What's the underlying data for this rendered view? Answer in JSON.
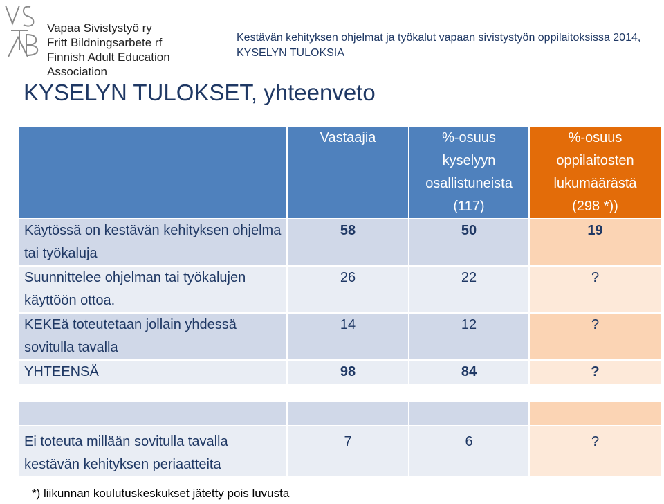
{
  "logo": {
    "mark": "VSTAB",
    "lines": [
      "Vapaa Sivistystyö ry",
      "Fritt Bildningsarbete rf",
      "Finnish Adult Education Association"
    ]
  },
  "header": {
    "subtitle_line1": "Kestävän kehityksen ohjelmat ja työkalut vapaan sivistystyön oppilaitoksissa 2014,",
    "subtitle_line2": "KYSELYN TULOKSIA"
  },
  "title": "KYSELYN TULOKSET, yhteenveto",
  "table": {
    "columns": [
      "",
      "Vastaajia",
      "%-osuus kyselyyn osallistuneista (117)",
      "%-osuus oppilaitosten lukumäärästä (298 *))"
    ],
    "column_lines": [
      [],
      [
        "Vastaajia"
      ],
      [
        "%-osuus",
        "kyselyyn",
        "osallistuneista",
        "(117)"
      ],
      [
        "%-osuus",
        "oppilaitosten",
        "lukumäärästä",
        "(298 *))"
      ]
    ],
    "rows": [
      {
        "label": "Käytössä on kestävän kehityksen ohjelma tai työkaluja",
        "vastaajia": "58",
        "pct_kysely": "50",
        "pct_oppilaitos": "19"
      },
      {
        "label": "Suunnittelee ohjelman tai työkalujen käyttöön ottoa.",
        "vastaajia": "26",
        "pct_kysely": "22",
        "pct_oppilaitos": "?"
      },
      {
        "label": "KEKEä toteutetaan jollain yhdessä sovitulla tavalla",
        "vastaajia": "14",
        "pct_kysely": "12",
        "pct_oppilaitos": "?"
      },
      {
        "label": "YHTEENSÄ",
        "vastaajia": "98",
        "pct_kysely": "84",
        "pct_oppilaitos": "?"
      },
      {
        "label": "",
        "vastaajia": "",
        "pct_kysely": "",
        "pct_oppilaitos": ""
      },
      {
        "label": "Ei toteuta millään sovitulla tavalla kestävän kehityksen periaatteita",
        "vastaajia": "7",
        "pct_kysely": "6",
        "pct_oppilaitos": "?"
      }
    ]
  },
  "footnote": "*) liikunnan koulutuskeskukset jätetty pois luvusta",
  "colors": {
    "header_blue": "#4f81bd",
    "header_orange": "#e36c09",
    "row_blue_dark": "#d0d8e8",
    "row_blue_light": "#e9edf4",
    "row_orange_dark": "#fbd4b4",
    "row_orange_light": "#fde9d9",
    "title_text": "#1f3864"
  }
}
